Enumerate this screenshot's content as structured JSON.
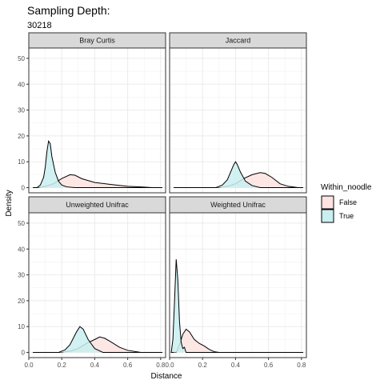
{
  "chart_data": {
    "type": "area",
    "title": "Sampling Depth:",
    "subtitle": "30218",
    "xlabel": "Distance",
    "ylabel": "Density",
    "xlim": [
      0,
      0.83
    ],
    "ylim": [
      -2,
      54
    ],
    "x_ticks": [
      0.0,
      0.2,
      0.4,
      0.6,
      0.8
    ],
    "x_tick_labels": [
      "0.0",
      "0.2",
      "0.4",
      "0.6",
      "0.8"
    ],
    "y_ticks": [
      0,
      10,
      20,
      30,
      40,
      50
    ],
    "y_tick_labels": [
      "0",
      "10",
      "20",
      "30",
      "40",
      "50"
    ],
    "grid": true,
    "legend": {
      "title": "Within_noodle",
      "position": "right",
      "entries": [
        {
          "label": "False",
          "color": "#f8766d"
        },
        {
          "label": "True",
          "color": "#00bfc4"
        }
      ]
    },
    "facets": [
      {
        "label": "Bray Curtis",
        "series": [
          {
            "name": "False",
            "x": [
              0.06,
              0.1,
              0.15,
              0.2,
              0.25,
              0.28,
              0.32,
              0.4,
              0.5,
              0.6,
              0.7,
              0.75
            ],
            "y": [
              0,
              0.5,
              1.5,
              3.5,
              5.0,
              4.8,
              3.5,
              2.0,
              1.2,
              0.5,
              0.2,
              0
            ]
          },
          {
            "name": "True",
            "x": [
              0.05,
              0.07,
              0.09,
              0.1,
              0.11,
              0.12,
              0.13,
              0.14,
              0.16,
              0.18,
              0.2,
              0.23,
              0.28
            ],
            "y": [
              0,
              1,
              4,
              8,
              14,
              18,
              17,
              12,
              6,
              2.5,
              1,
              0.3,
              0
            ]
          }
        ]
      },
      {
        "label": "Jaccard",
        "series": [
          {
            "name": "False",
            "x": [
              0.3,
              0.35,
              0.4,
              0.45,
              0.5,
              0.55,
              0.58,
              0.62,
              0.67,
              0.72,
              0.78
            ],
            "y": [
              0,
              0.5,
              1.5,
              3.5,
              5.0,
              5.8,
              5.5,
              4.0,
              1.5,
              0.5,
              0
            ]
          },
          {
            "name": "True",
            "x": [
              0.28,
              0.32,
              0.35,
              0.37,
              0.39,
              0.4,
              0.41,
              0.43,
              0.46,
              0.5,
              0.55
            ],
            "y": [
              0,
              1,
              3,
              6,
              9,
              10,
              9,
              6,
              2.5,
              0.8,
              0
            ]
          }
        ]
      },
      {
        "label": "Unweighted Unifrac",
        "series": [
          {
            "name": "False",
            "x": [
              0.2,
              0.25,
              0.3,
              0.35,
              0.4,
              0.43,
              0.46,
              0.5,
              0.55,
              0.6,
              0.68
            ],
            "y": [
              0,
              0.5,
              1.5,
              3.5,
              5.0,
              6.0,
              5.5,
              4.0,
              2.0,
              0.8,
              0
            ]
          },
          {
            "name": "True",
            "x": [
              0.18,
              0.22,
              0.25,
              0.27,
              0.29,
              0.31,
              0.33,
              0.36,
              0.4,
              0.45
            ],
            "y": [
              0,
              1,
              3,
              5.5,
              8,
              10,
              9,
              5,
              1.5,
              0
            ]
          }
        ]
      },
      {
        "label": "Weighted Unifrac",
        "series": [
          {
            "name": "False",
            "x": [
              0.04,
              0.06,
              0.08,
              0.1,
              0.12,
              0.15,
              0.18,
              0.21,
              0.24,
              0.27,
              0.3
            ],
            "y": [
              0,
              3,
              7,
              9,
              8,
              5,
              3.5,
              2.5,
              1.2,
              0.3,
              0
            ]
          },
          {
            "name": "True",
            "x": [
              0.01,
              0.02,
              0.03,
              0.04,
              0.05,
              0.06,
              0.07,
              0.08,
              0.09,
              0.1
            ],
            "y": [
              0,
              5,
              20,
              36,
              28,
              12,
              4,
              1.5,
              2,
              0
            ]
          }
        ]
      }
    ]
  },
  "colors": {
    "false_fill": "#fde3e1",
    "true_fill": "#c9eff0",
    "strip_bg": "#d9d9d9",
    "grid": "#ebebeb",
    "panel_border": "#333333"
  }
}
